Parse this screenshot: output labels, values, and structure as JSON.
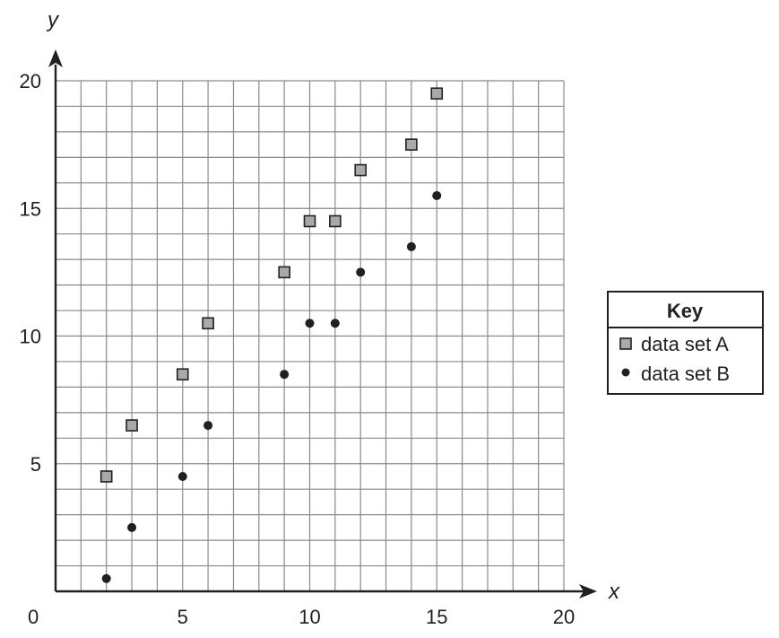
{
  "chart_data": {
    "type": "scatter",
    "x_axis": {
      "label": "x",
      "min": 0,
      "max": 20,
      "tick_values": [
        0,
        5,
        10,
        15,
        20
      ],
      "tick_labels": [
        "0",
        "5",
        "10",
        "15",
        "20"
      ],
      "minor_step": 1
    },
    "y_axis": {
      "label": "y",
      "min": 0,
      "max": 20,
      "tick_values": [
        5,
        10,
        15,
        20
      ],
      "tick_labels": [
        "5",
        "10",
        "15",
        "20"
      ],
      "minor_step": 1
    },
    "grid": true,
    "legend": {
      "title": "Key",
      "placement": "right"
    },
    "series": [
      {
        "name": "data set A",
        "marker": "square",
        "color": "#a7a9ac",
        "points": [
          {
            "x": 2,
            "y": 4.5
          },
          {
            "x": 3,
            "y": 6.5
          },
          {
            "x": 5,
            "y": 8.5
          },
          {
            "x": 6,
            "y": 10.5
          },
          {
            "x": 9,
            "y": 12.5
          },
          {
            "x": 10,
            "y": 14.5
          },
          {
            "x": 11,
            "y": 14.5
          },
          {
            "x": 12,
            "y": 16.5
          },
          {
            "x": 14,
            "y": 17.5
          },
          {
            "x": 15,
            "y": 19.5
          }
        ]
      },
      {
        "name": "data set B",
        "marker": "circle",
        "color": "#231f20",
        "points": [
          {
            "x": 2,
            "y": 0.5
          },
          {
            "x": 3,
            "y": 2.5
          },
          {
            "x": 5,
            "y": 4.5
          },
          {
            "x": 6,
            "y": 6.5
          },
          {
            "x": 9,
            "y": 8.5
          },
          {
            "x": 10,
            "y": 10.5
          },
          {
            "x": 11,
            "y": 10.5
          },
          {
            "x": 12,
            "y": 12.5
          },
          {
            "x": 14,
            "y": 13.5
          },
          {
            "x": 15,
            "y": 15.5
          }
        ]
      }
    ]
  }
}
